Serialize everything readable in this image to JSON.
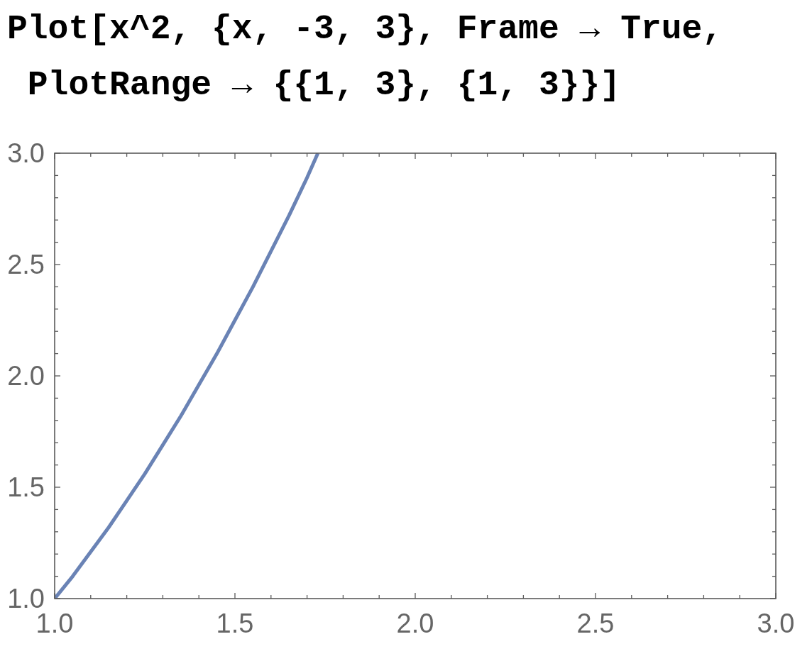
{
  "chart_data": {
    "type": "line",
    "title": "Plot[x^2, {x, -3, 3}, Frame → True,\n PlotRange → {{1, 3}, {1, 3}}]",
    "x": [
      1,
      1.05,
      1.1,
      1.15,
      1.2,
      1.25,
      1.3,
      1.35,
      1.4,
      1.45,
      1.5,
      1.55,
      1.6,
      1.65,
      1.7,
      1.73
    ],
    "series": [
      {
        "color": "#6a83b5",
        "values": [
          1,
          1.1,
          1.21,
          1.32,
          1.44,
          1.56,
          1.69,
          1.82,
          1.96,
          2.1,
          2.25,
          2.4,
          2.56,
          2.72,
          2.89,
          3.0
        ]
      }
    ],
    "xlim": [
      1,
      3
    ],
    "ylim": [
      1,
      3
    ],
    "xticks": [
      {
        "value": 1,
        "label": "1.0"
      },
      {
        "value": 1.1,
        "label": null
      },
      {
        "value": 1.2,
        "label": null
      },
      {
        "value": 1.3,
        "label": null
      },
      {
        "value": 1.4,
        "label": null
      },
      {
        "value": 1.5,
        "label": "1.5"
      },
      {
        "value": 1.6,
        "label": null
      },
      {
        "value": 1.7,
        "label": null
      },
      {
        "value": 1.8,
        "label": null
      },
      {
        "value": 1.9,
        "label": null
      },
      {
        "value": 2,
        "label": "2.0"
      },
      {
        "value": 2.1,
        "label": null
      },
      {
        "value": 2.2,
        "label": null
      },
      {
        "value": 2.3,
        "label": null
      },
      {
        "value": 2.4,
        "label": null
      },
      {
        "value": 2.5,
        "label": "2.5"
      },
      {
        "value": 2.6,
        "label": null
      },
      {
        "value": 2.7,
        "label": null
      },
      {
        "value": 2.8,
        "label": null
      },
      {
        "value": 2.9,
        "label": null
      },
      {
        "value": 3,
        "label": "3.0"
      }
    ],
    "yticks": [
      {
        "value": 1,
        "label": "1.0"
      },
      {
        "value": 1.1,
        "label": null
      },
      {
        "value": 1.2,
        "label": null
      },
      {
        "value": 1.3,
        "label": null
      },
      {
        "value": 1.4,
        "label": null
      },
      {
        "value": 1.5,
        "label": "1.5"
      },
      {
        "value": 1.6,
        "label": null
      },
      {
        "value": 1.7,
        "label": null
      },
      {
        "value": 1.8,
        "label": null
      },
      {
        "value": 1.9,
        "label": null
      },
      {
        "value": 2,
        "label": "2.0"
      },
      {
        "value": 2.1,
        "label": null
      },
      {
        "value": 2.2,
        "label": null
      },
      {
        "value": 2.3,
        "label": null
      },
      {
        "value": 2.4,
        "label": null
      },
      {
        "value": 2.5,
        "label": "2.5"
      },
      {
        "value": 2.6,
        "label": null
      },
      {
        "value": 2.7,
        "label": null
      },
      {
        "value": 2.8,
        "label": null
      },
      {
        "value": 2.9,
        "label": null
      },
      {
        "value": 3,
        "label": "3.0"
      }
    ]
  }
}
